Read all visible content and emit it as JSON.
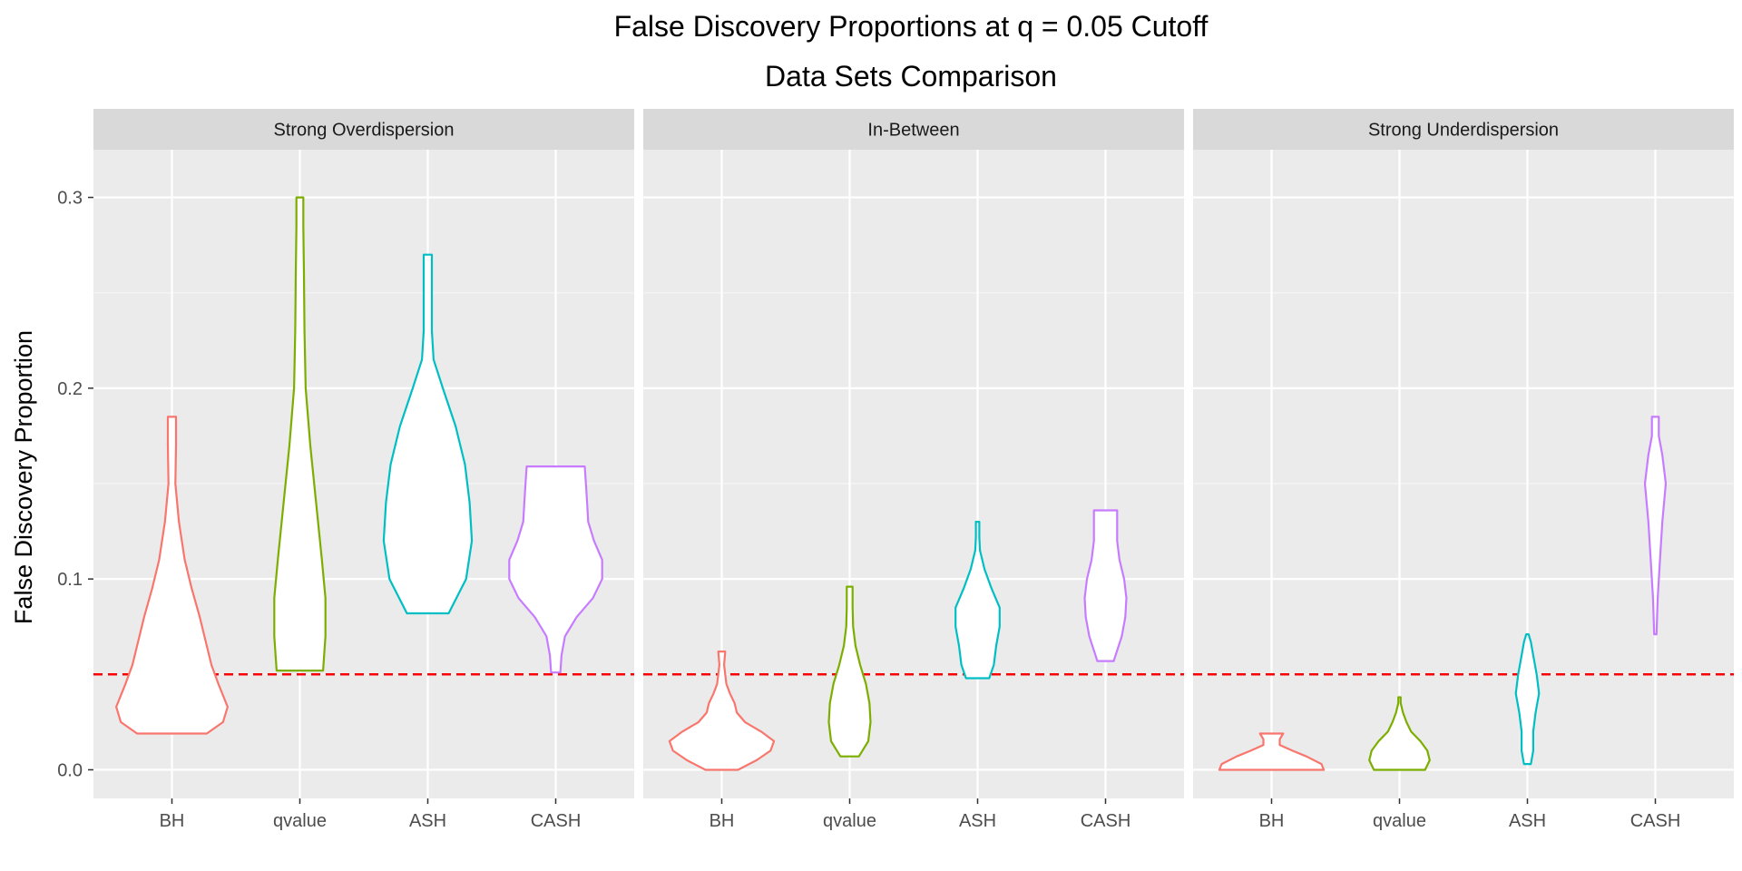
{
  "chart_data": {
    "type": "violin",
    "title": "False Discovery Proportions at q = 0.05 Cutoff",
    "subtitle": "Data Sets Comparison",
    "ylabel": "False Discovery Proportion",
    "xlabel": "",
    "ylim": [
      -0.015,
      0.325
    ],
    "yticks": [
      0.0,
      0.1,
      0.2,
      0.3
    ],
    "ytick_labels": [
      "0.0",
      "0.1",
      "0.2",
      "0.3"
    ],
    "categories": [
      "BH",
      "qvalue",
      "ASH",
      "CASH"
    ],
    "colors": {
      "BH": "#F8766D",
      "qvalue": "#7CAE00",
      "ASH": "#00BFC4",
      "CASH": "#C77CFF"
    },
    "reference_line": {
      "y": 0.05,
      "color": "#FF0000",
      "style": "dashed"
    },
    "grid": true,
    "panels": [
      {
        "label": "Strong Overdispersion",
        "violins": [
          {
            "category": "BH",
            "min": 0.019,
            "max": 0.185,
            "profile": [
              [
                0.019,
                0.3
              ],
              [
                0.025,
                0.44
              ],
              [
                0.033,
                0.48
              ],
              [
                0.045,
                0.4
              ],
              [
                0.055,
                0.34
              ],
              [
                0.065,
                0.3
              ],
              [
                0.08,
                0.24
              ],
              [
                0.095,
                0.17
              ],
              [
                0.11,
                0.11
              ],
              [
                0.13,
                0.06
              ],
              [
                0.15,
                0.03
              ],
              [
                0.17,
                0.035
              ],
              [
                0.185,
                0.035
              ]
            ]
          },
          {
            "category": "qvalue",
            "min": 0.052,
            "max": 0.3,
            "profile": [
              [
                0.052,
                0.2
              ],
              [
                0.07,
                0.22
              ],
              [
                0.09,
                0.22
              ],
              [
                0.11,
                0.19
              ],
              [
                0.14,
                0.14
              ],
              [
                0.17,
                0.09
              ],
              [
                0.2,
                0.05
              ],
              [
                0.23,
                0.04
              ],
              [
                0.26,
                0.035
              ],
              [
                0.285,
                0.03
              ],
              [
                0.3,
                0.03
              ]
            ]
          },
          {
            "category": "ASH",
            "min": 0.082,
            "max": 0.27,
            "profile": [
              [
                0.082,
                0.18
              ],
              [
                0.1,
                0.33
              ],
              [
                0.12,
                0.38
              ],
              [
                0.14,
                0.36
              ],
              [
                0.16,
                0.32
              ],
              [
                0.18,
                0.24
              ],
              [
                0.2,
                0.13
              ],
              [
                0.215,
                0.05
              ],
              [
                0.23,
                0.035
              ],
              [
                0.25,
                0.035
              ],
              [
                0.27,
                0.035
              ]
            ]
          },
          {
            "category": "CASH",
            "min": 0.051,
            "max": 0.159,
            "profile": [
              [
                0.051,
                0.04
              ],
              [
                0.06,
                0.05
              ],
              [
                0.07,
                0.08
              ],
              [
                0.08,
                0.18
              ],
              [
                0.09,
                0.32
              ],
              [
                0.1,
                0.4
              ],
              [
                0.11,
                0.4
              ],
              [
                0.12,
                0.33
              ],
              [
                0.13,
                0.28
              ],
              [
                0.14,
                0.27
              ],
              [
                0.15,
                0.26
              ],
              [
                0.159,
                0.25
              ]
            ]
          }
        ]
      },
      {
        "label": "In-Between",
        "violins": [
          {
            "category": "BH",
            "min": 0.0,
            "max": 0.062,
            "profile": [
              [
                0.0,
                0.14
              ],
              [
                0.005,
                0.3
              ],
              [
                0.01,
                0.42
              ],
              [
                0.015,
                0.45
              ],
              [
                0.02,
                0.34
              ],
              [
                0.025,
                0.2
              ],
              [
                0.03,
                0.13
              ],
              [
                0.035,
                0.11
              ],
              [
                0.04,
                0.07
              ],
              [
                0.045,
                0.04
              ],
              [
                0.05,
                0.03
              ],
              [
                0.055,
                0.02
              ],
              [
                0.062,
                0.03
              ]
            ]
          },
          {
            "category": "qvalue",
            "min": 0.007,
            "max": 0.096,
            "profile": [
              [
                0.007,
                0.08
              ],
              [
                0.015,
                0.16
              ],
              [
                0.025,
                0.18
              ],
              [
                0.035,
                0.17
              ],
              [
                0.045,
                0.14
              ],
              [
                0.055,
                0.09
              ],
              [
                0.065,
                0.05
              ],
              [
                0.075,
                0.03
              ],
              [
                0.085,
                0.025
              ],
              [
                0.096,
                0.025
              ]
            ]
          },
          {
            "category": "ASH",
            "min": 0.048,
            "max": 0.13,
            "profile": [
              [
                0.048,
                0.1
              ],
              [
                0.055,
                0.14
              ],
              [
                0.065,
                0.16
              ],
              [
                0.075,
                0.19
              ],
              [
                0.085,
                0.19
              ],
              [
                0.095,
                0.12
              ],
              [
                0.105,
                0.06
              ],
              [
                0.115,
                0.02
              ],
              [
                0.122,
                0.015
              ],
              [
                0.13,
                0.015
              ]
            ]
          },
          {
            "category": "CASH",
            "min": 0.057,
            "max": 0.136,
            "profile": [
              [
                0.057,
                0.07
              ],
              [
                0.07,
                0.14
              ],
              [
                0.08,
                0.17
              ],
              [
                0.09,
                0.18
              ],
              [
                0.1,
                0.16
              ],
              [
                0.11,
                0.12
              ],
              [
                0.12,
                0.1
              ],
              [
                0.13,
                0.1
              ],
              [
                0.136,
                0.1
              ]
            ]
          }
        ]
      },
      {
        "label": "Strong Underdispersion",
        "violins": [
          {
            "category": "BH",
            "min": 0.0,
            "max": 0.019,
            "profile": [
              [
                0.0,
                0.45
              ],
              [
                0.003,
                0.43
              ],
              [
                0.007,
                0.3
              ],
              [
                0.01,
                0.18
              ],
              [
                0.013,
                0.07
              ],
              [
                0.016,
                0.07
              ],
              [
                0.019,
                0.1
              ]
            ]
          },
          {
            "category": "qvalue",
            "min": 0.0,
            "max": 0.038,
            "profile": [
              [
                0.0,
                0.22
              ],
              [
                0.005,
                0.26
              ],
              [
                0.01,
                0.24
              ],
              [
                0.015,
                0.18
              ],
              [
                0.02,
                0.1
              ],
              [
                0.025,
                0.06
              ],
              [
                0.03,
                0.03
              ],
              [
                0.035,
                0.01
              ],
              [
                0.038,
                0.01
              ]
            ]
          },
          {
            "category": "ASH",
            "min": 0.003,
            "max": 0.071,
            "profile": [
              [
                0.003,
                0.03
              ],
              [
                0.01,
                0.05
              ],
              [
                0.02,
                0.05
              ],
              [
                0.03,
                0.07
              ],
              [
                0.04,
                0.1
              ],
              [
                0.05,
                0.08
              ],
              [
                0.06,
                0.05
              ],
              [
                0.067,
                0.03
              ],
              [
                0.071,
                0.01
              ]
            ]
          },
          {
            "category": "CASH",
            "min": 0.071,
            "max": 0.185,
            "profile": [
              [
                0.071,
                0.01
              ],
              [
                0.09,
                0.02
              ],
              [
                0.11,
                0.04
              ],
              [
                0.13,
                0.06
              ],
              [
                0.15,
                0.09
              ],
              [
                0.165,
                0.06
              ],
              [
                0.175,
                0.03
              ],
              [
                0.185,
                0.03
              ]
            ]
          }
        ]
      }
    ]
  }
}
